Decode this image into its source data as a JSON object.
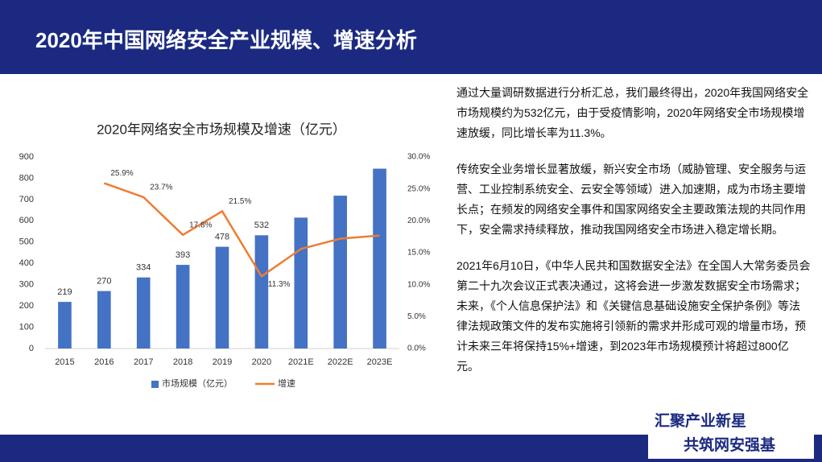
{
  "header": {
    "title": "2020年中国网络安全产业规模、增速分析"
  },
  "chart_data": {
    "type": "bar-line",
    "title": "2020年网络安全市场规模及增速（亿元）",
    "categories": [
      "2015",
      "2016",
      "2017",
      "2018",
      "2019",
      "2020",
      "2021E",
      "2022E",
      "2023E"
    ],
    "series": [
      {
        "name": "市场规模（亿元）",
        "type": "bar",
        "color": "#4472c4",
        "values": [
          219,
          270,
          334,
          393,
          478,
          532,
          615,
          718,
          845
        ],
        "value_labels": [
          "219",
          "270",
          "334",
          "393",
          "478",
          "532",
          null,
          null,
          null
        ]
      },
      {
        "name": "增速",
        "type": "line",
        "axis": "y2",
        "color": "#ed7d31",
        "values": [
          null,
          25.9,
          23.7,
          17.8,
          21.5,
          11.3,
          15.6,
          17.2,
          17.7
        ],
        "value_labels": [
          null,
          "25.9%",
          "23.7%",
          "17.8%",
          "21.5%",
          "11.3%",
          null,
          null,
          null
        ]
      }
    ],
    "ylim": [
      0,
      900
    ],
    "yticks": [
      0,
      100,
      200,
      300,
      400,
      500,
      600,
      700,
      800,
      900
    ],
    "y2lim": [
      0,
      30
    ],
    "y2ticks": [
      {
        "value": 0,
        "label": "0.0%"
      },
      {
        "value": 5,
        "label": "5.0%"
      },
      {
        "value": 10,
        "label": "10.0%"
      },
      {
        "value": 15,
        "label": "15.0%"
      },
      {
        "value": 20,
        "label": "20.0%"
      },
      {
        "value": 25,
        "label": "25.0%"
      },
      {
        "value": 30,
        "label": "30.0%"
      }
    ],
    "grid": false,
    "legend": "bottom"
  },
  "paragraphs": [
    "通过大量调研数据进行分析汇总，我们最终得出，2020年我国网络安全市场规模约为532亿元，由于受疫情影响，2020年网络安全市场规模增速放缓，同比增长率为11.3%。",
    "传统安全业务增长显著放缓，新兴安全市场（威胁管理、安全服务与运营、工业控制系统安全、云安全等领域）进入加速期，成为市场主要增长点；在频发的网络安全事件和国家网络安全主要政策法规的共同作用下，安全需求持续释放，推动我国网络安全市场进入稳定增长期。",
    "2021年6月10日，《中华人民共和国数据安全法》在全国人大常务委员会第二十九次会议正式表决通过，这将会进一步激发数据安全市场需求；未来，《个人信息保护法》和《关键信息基础设施安全保护条例》等法律法规政策文件的发布实施将引领新的需求并形成可观的增量市场，预计未来三年将保持15%+增速，到2023年市场规模预计将超过800亿元。"
  ],
  "logo": {
    "line1": "汇聚产业新星",
    "line2": "共筑网安强基"
  }
}
